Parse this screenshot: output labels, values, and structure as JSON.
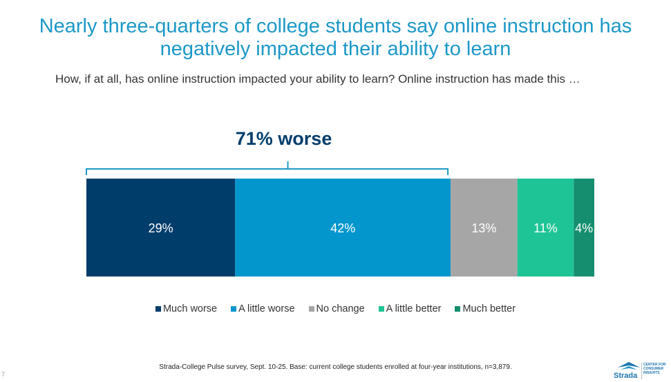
{
  "title": "Nearly three-quarters of college students say online instruction has negatively impacted their ability to learn",
  "subtitle": "How, if at all, has online instruction impacted your ability to learn? Online instruction has made this …",
  "chart_data": {
    "type": "bar",
    "orientation": "horizontal-stacked-100",
    "bracket_label": "71% worse",
    "bracket_covers": [
      "Much worse",
      "A little worse"
    ],
    "series": [
      {
        "name": "Much worse",
        "value": 29,
        "label": "29%",
        "color": "#003d6b"
      },
      {
        "name": "A little worse",
        "value": 42,
        "label": "42%",
        "color": "#0396cc"
      },
      {
        "name": "No change",
        "value": 13,
        "label": "13%",
        "color": "#a6a6a6"
      },
      {
        "name": "A little better",
        "value": 11,
        "label": "11%",
        "color": "#1fc496"
      },
      {
        "name": "Much better",
        "value": 4,
        "label": "4%",
        "color": "#148e6e"
      }
    ],
    "legend_position": "bottom"
  },
  "footnote": "Strada-College Pulse survey, Sept. 10-25. Base: current college students enrolled at four-year institutions, n=3,879.",
  "page_number": "7",
  "logo": {
    "name": "Strada",
    "tagline": "CENTER FOR CONSUMER INSIGHTS"
  }
}
